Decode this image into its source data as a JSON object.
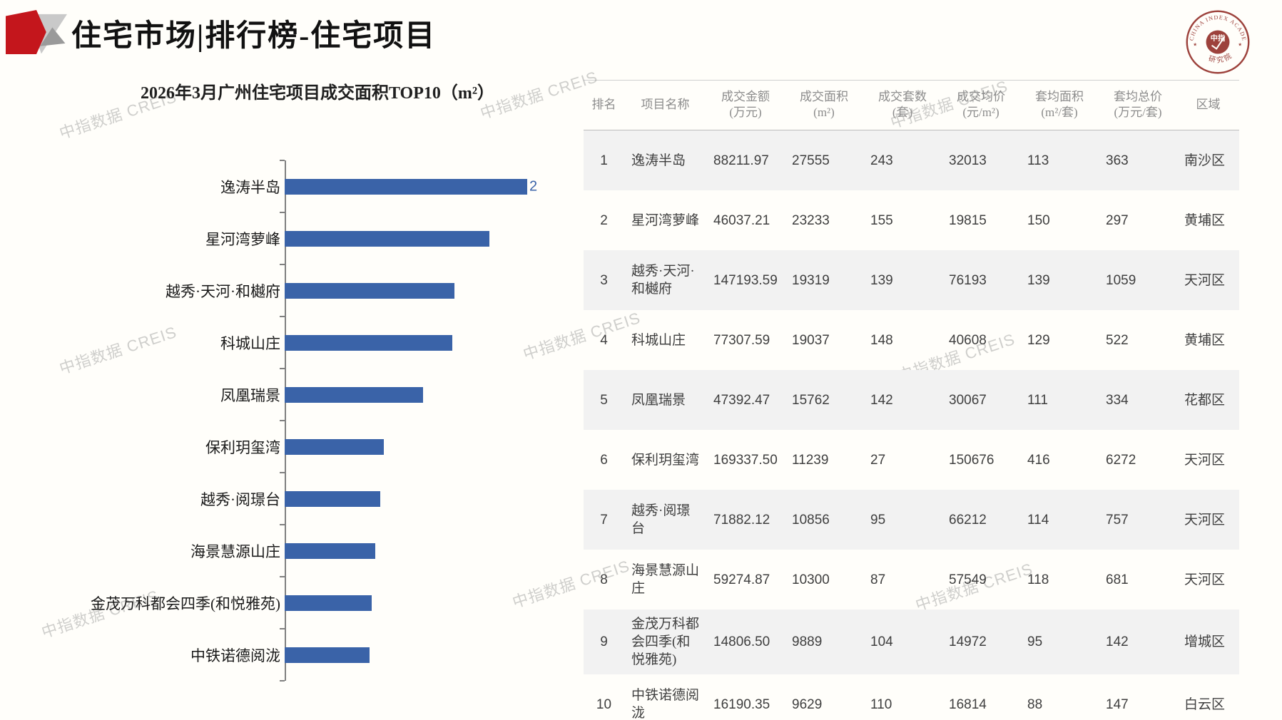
{
  "header": {
    "title": "住宅市场|排行榜-住宅项目"
  },
  "logo": {
    "ring_text": "CHINA INDEX ACADEMY",
    "inner_text": "中指",
    "bottom_text": "研究院",
    "color": "#9d423c"
  },
  "watermark": {
    "text": "中指数据 CREIS"
  },
  "chart_data": {
    "type": "bar",
    "orientation": "horizontal",
    "title": "2026年3月广州住宅项目成交面积TOP10（m²）",
    "categories": [
      "逸涛半岛",
      "星河湾萝峰",
      "越秀·天河·和樾府",
      "科城山庄",
      "凤凰瑞景",
      "保利玥玺湾",
      "越秀·阅璟台",
      "海景慧源山庄",
      "金茂万科都会四季(和悦雅苑)",
      "中铁诺德阅泷"
    ],
    "values": [
      27555,
      23233,
      19319,
      19037,
      15762,
      11239,
      10856,
      10300,
      9889,
      9629
    ],
    "xlabel": "",
    "ylabel": "",
    "xlim": [
      0,
      28000
    ],
    "grid": false,
    "legend": false,
    "bar_color": "#3a63a8",
    "note": "only the first bar shows a data label, clipped at plot edge to the digit 2 (of 27555)"
  },
  "table": {
    "columns": [
      {
        "label": "排名",
        "unit": ""
      },
      {
        "label": "项目名称",
        "unit": ""
      },
      {
        "label": "成交金额",
        "unit": "(万元)"
      },
      {
        "label": "成交面积",
        "unit": "(m²)"
      },
      {
        "label": "成交套数",
        "unit": "(套)"
      },
      {
        "label": "成交均价",
        "unit": "(元/m²)"
      },
      {
        "label": "套均面积",
        "unit": "(m²/套)"
      },
      {
        "label": "套均总价",
        "unit": "(万元/套)"
      },
      {
        "label": "区域",
        "unit": ""
      }
    ],
    "rows": [
      [
        "1",
        "逸涛半岛",
        "88211.97",
        "27555",
        "243",
        "32013",
        "113",
        "363",
        "南沙区"
      ],
      [
        "2",
        "星河湾萝峰",
        "46037.21",
        "23233",
        "155",
        "19815",
        "150",
        "297",
        "黄埔区"
      ],
      [
        "3",
        "越秀·天河·和樾府",
        "147193.59",
        "19319",
        "139",
        "76193",
        "139",
        "1059",
        "天河区"
      ],
      [
        "4",
        "科城山庄",
        "77307.59",
        "19037",
        "148",
        "40608",
        "129",
        "522",
        "黄埔区"
      ],
      [
        "5",
        "凤凰瑞景",
        "47392.47",
        "15762",
        "142",
        "30067",
        "111",
        "334",
        "花都区"
      ],
      [
        "6",
        "保利玥玺湾",
        "169337.50",
        "11239",
        "27",
        "150676",
        "416",
        "6272",
        "天河区"
      ],
      [
        "7",
        "越秀·阅璟台",
        "71882.12",
        "10856",
        "95",
        "66212",
        "114",
        "757",
        "天河区"
      ],
      [
        "8",
        "海景慧源山庄",
        "59274.87",
        "10300",
        "87",
        "57549",
        "118",
        "681",
        "天河区"
      ],
      [
        "9",
        "金茂万科都会四季(和悦雅苑)",
        "14806.50",
        "9889",
        "104",
        "14972",
        "95",
        "142",
        "增城区"
      ],
      [
        "10",
        "中铁诺德阅泷",
        "16190.35",
        "9629",
        "110",
        "16814",
        "88",
        "147",
        "白云区"
      ]
    ]
  }
}
